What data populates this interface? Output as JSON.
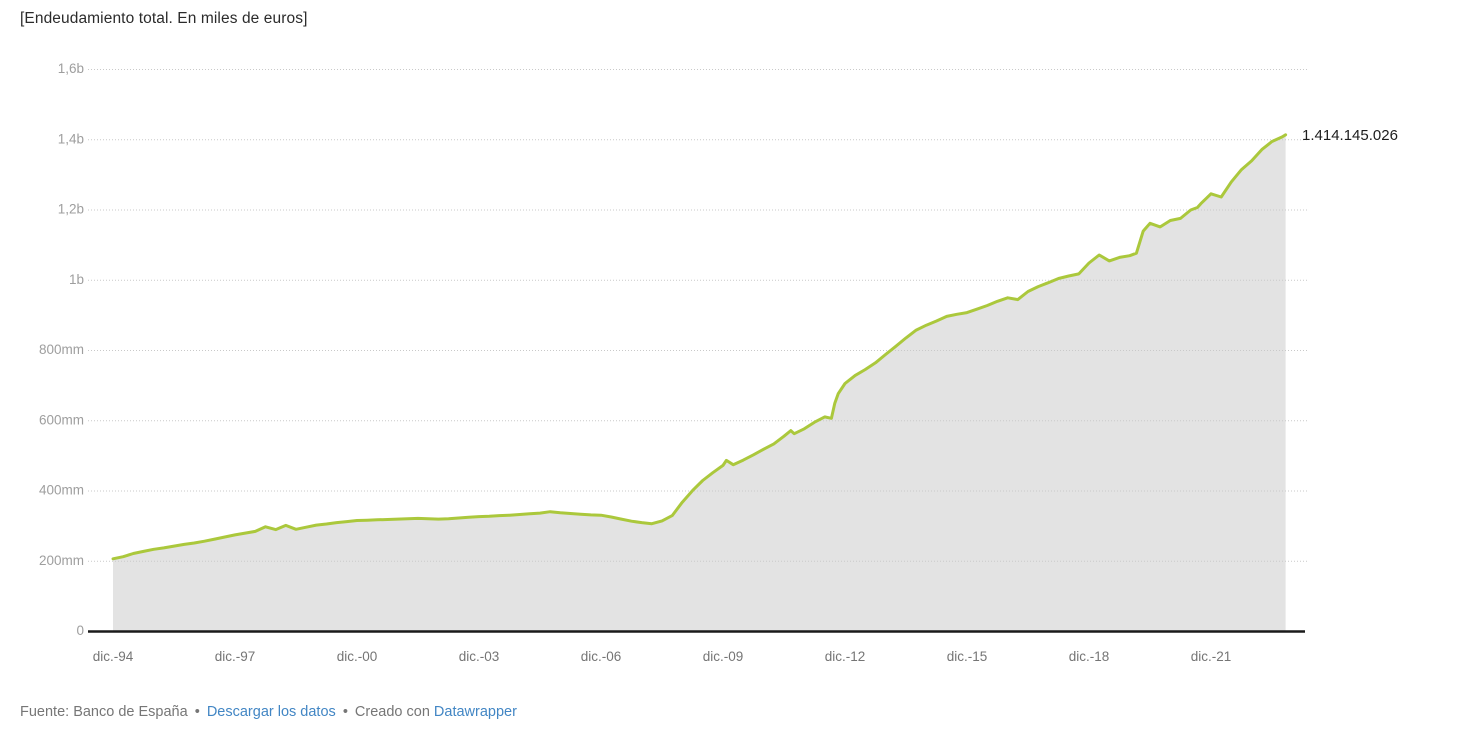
{
  "title": "[Endeudamiento total. En miles de euros]",
  "end_label": "1.414.145.026",
  "footer": {
    "source_label": "Fuente: Banco de España",
    "separator": "•",
    "download_link": "Descargar los datos",
    "created_with": "Creado con",
    "tool_link": "Datawrapper"
  },
  "colors": {
    "line": "#abc83c",
    "area": "#e3e3e3",
    "grid": "#c9c9c9",
    "axis": "#1a1a1a",
    "y_label": "#9e9e9e",
    "x_label": "#757575",
    "title": "#2b2b2b",
    "value_label": "#1d1d1d",
    "link": "#4286c4",
    "footer_text": "#767676"
  },
  "chart_data": {
    "type": "area",
    "title": "[Endeudamiento total. En miles de euros]",
    "unit": "miles de euros",
    "xlabel": "",
    "ylabel": "",
    "ylim": [
      0,
      1600000000
    ],
    "grid": "horizontal-dotted",
    "legend": "none",
    "last_value": 1414145026,
    "last_value_label": "1.414.145.026",
    "y_ticks": [
      {
        "value": 0,
        "label": "0"
      },
      {
        "value": 200000000,
        "label": "200mm"
      },
      {
        "value": 400000000,
        "label": "400mm"
      },
      {
        "value": 600000000,
        "label": "600mm"
      },
      {
        "value": 800000000,
        "label": "800mm"
      },
      {
        "value": 1000000000,
        "label": "1b"
      },
      {
        "value": 1200000000,
        "label": "1,2b"
      },
      {
        "value": 1400000000,
        "label": "1,4b"
      },
      {
        "value": 1600000000,
        "label": "1,6b"
      }
    ],
    "x_ticks": [
      {
        "t": "1994-12",
        "label": "dic.-94"
      },
      {
        "t": "1997-12",
        "label": "dic.-97"
      },
      {
        "t": "2000-12",
        "label": "dic.-00"
      },
      {
        "t": "2003-12",
        "label": "dic.-03"
      },
      {
        "t": "2006-12",
        "label": "dic.-06"
      },
      {
        "t": "2009-12",
        "label": "dic.-09"
      },
      {
        "t": "2012-12",
        "label": "dic.-12"
      },
      {
        "t": "2015-12",
        "label": "dic.-15"
      },
      {
        "t": "2018-12",
        "label": "dic.-18"
      },
      {
        "t": "2021-12",
        "label": "dic.-21"
      }
    ],
    "series": [
      {
        "name": "Endeudamiento total",
        "points": [
          [
            "1994-12",
            207000000
          ],
          [
            "1995-03",
            213000000
          ],
          [
            "1995-06",
            222000000
          ],
          [
            "1995-09",
            228000000
          ],
          [
            "1995-12",
            234000000
          ],
          [
            "1996-03",
            238000000
          ],
          [
            "1996-06",
            243000000
          ],
          [
            "1996-09",
            248000000
          ],
          [
            "1996-12",
            252000000
          ],
          [
            "1997-03",
            257000000
          ],
          [
            "1997-06",
            263000000
          ],
          [
            "1997-09",
            269000000
          ],
          [
            "1997-12",
            275000000
          ],
          [
            "1998-03",
            280000000
          ],
          [
            "1998-06",
            285000000
          ],
          [
            "1998-09",
            298000000
          ],
          [
            "1998-12",
            290000000
          ],
          [
            "1999-03",
            302000000
          ],
          [
            "1999-06",
            291000000
          ],
          [
            "1999-09",
            297000000
          ],
          [
            "1999-12",
            303000000
          ],
          [
            "2000-03",
            306000000
          ],
          [
            "2000-06",
            310000000
          ],
          [
            "2000-09",
            313000000
          ],
          [
            "2000-12",
            316000000
          ],
          [
            "2001-03",
            317000000
          ],
          [
            "2001-06",
            318000000
          ],
          [
            "2001-09",
            319000000
          ],
          [
            "2001-12",
            320000000
          ],
          [
            "2002-03",
            321000000
          ],
          [
            "2002-06",
            322000000
          ],
          [
            "2002-09",
            321000000
          ],
          [
            "2002-12",
            320000000
          ],
          [
            "2003-03",
            321000000
          ],
          [
            "2003-06",
            323000000
          ],
          [
            "2003-09",
            325000000
          ],
          [
            "2003-12",
            327000000
          ],
          [
            "2004-03",
            328000000
          ],
          [
            "2004-06",
            330000000
          ],
          [
            "2004-09",
            331000000
          ],
          [
            "2004-12",
            333000000
          ],
          [
            "2005-03",
            335000000
          ],
          [
            "2005-06",
            337000000
          ],
          [
            "2005-09",
            341000000
          ],
          [
            "2005-12",
            338000000
          ],
          [
            "2006-03",
            336000000
          ],
          [
            "2006-06",
            334000000
          ],
          [
            "2006-09",
            332000000
          ],
          [
            "2006-12",
            331000000
          ],
          [
            "2007-03",
            326000000
          ],
          [
            "2007-06",
            320000000
          ],
          [
            "2007-09",
            314000000
          ],
          [
            "2007-12",
            310000000
          ],
          [
            "2008-03",
            307000000
          ],
          [
            "2008-06",
            315000000
          ],
          [
            "2008-09",
            330000000
          ],
          [
            "2008-12",
            368000000
          ],
          [
            "2009-03",
            401000000
          ],
          [
            "2009-06",
            430000000
          ],
          [
            "2009-09",
            452000000
          ],
          [
            "2009-12",
            473000000
          ],
          [
            "2010-01",
            487000000
          ],
          [
            "2010-03",
            475000000
          ],
          [
            "2010-06",
            488000000
          ],
          [
            "2010-09",
            503000000
          ],
          [
            "2010-12",
            519000000
          ],
          [
            "2011-03",
            534000000
          ],
          [
            "2011-06",
            556000000
          ],
          [
            "2011-08",
            572000000
          ],
          [
            "2011-09",
            563000000
          ],
          [
            "2011-12",
            577000000
          ],
          [
            "2012-03",
            596000000
          ],
          [
            "2012-06",
            611000000
          ],
          [
            "2012-08",
            607000000
          ],
          [
            "2012-09",
            650000000
          ],
          [
            "2012-10",
            677000000
          ],
          [
            "2012-12",
            706000000
          ],
          [
            "2013-03",
            729000000
          ],
          [
            "2013-06",
            746000000
          ],
          [
            "2013-09",
            765000000
          ],
          [
            "2013-12",
            789000000
          ],
          [
            "2014-03",
            812000000
          ],
          [
            "2014-06",
            836000000
          ],
          [
            "2014-09",
            858000000
          ],
          [
            "2014-12",
            872000000
          ],
          [
            "2015-03",
            884000000
          ],
          [
            "2015-06",
            897000000
          ],
          [
            "2015-09",
            903000000
          ],
          [
            "2015-12",
            908000000
          ],
          [
            "2016-03",
            918000000
          ],
          [
            "2016-06",
            928000000
          ],
          [
            "2016-09",
            940000000
          ],
          [
            "2016-12",
            950000000
          ],
          [
            "2017-03",
            945000000
          ],
          [
            "2017-06",
            968000000
          ],
          [
            "2017-09",
            982000000
          ],
          [
            "2017-12",
            993000000
          ],
          [
            "2018-03",
            1005000000
          ],
          [
            "2018-06",
            1012000000
          ],
          [
            "2018-09",
            1018000000
          ],
          [
            "2018-12",
            1049000000
          ],
          [
            "2019-03",
            1072000000
          ],
          [
            "2019-06",
            1055000000
          ],
          [
            "2019-09",
            1065000000
          ],
          [
            "2019-12",
            1070000000
          ],
          [
            "2020-02",
            1077000000
          ],
          [
            "2020-04",
            1140000000
          ],
          [
            "2020-06",
            1162000000
          ],
          [
            "2020-09",
            1152000000
          ],
          [
            "2020-12",
            1170000000
          ],
          [
            "2021-03",
            1176000000
          ],
          [
            "2021-06",
            1200000000
          ],
          [
            "2021-08",
            1207000000
          ],
          [
            "2021-09",
            1218000000
          ],
          [
            "2021-12",
            1246000000
          ],
          [
            "2022-03",
            1237000000
          ],
          [
            "2022-06",
            1280000000
          ],
          [
            "2022-09",
            1315000000
          ],
          [
            "2022-12",
            1340000000
          ],
          [
            "2023-03",
            1372000000
          ],
          [
            "2023-06",
            1395000000
          ],
          [
            "2023-09",
            1408000000
          ],
          [
            "2023-10",
            1414145026
          ]
        ]
      }
    ]
  }
}
